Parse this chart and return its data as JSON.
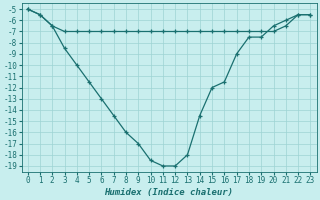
{
  "xlabel": "Humidex (Indice chaleur)",
  "background_color": "#c8eeee",
  "line_color": "#1a7070",
  "grid_color": "#9dd4d4",
  "xlim": [
    -0.5,
    23.5
  ],
  "ylim": [
    -19.5,
    -4.5
  ],
  "x_line1": [
    0,
    1,
    2,
    3,
    4,
    5,
    6,
    7,
    8,
    9,
    10,
    11,
    12,
    13,
    14,
    15,
    16,
    17,
    18,
    19,
    20,
    21,
    22,
    23
  ],
  "y_line1": [
    -5.0,
    -5.5,
    -6.5,
    -8.5,
    -10.0,
    -11.5,
    -13.0,
    -14.5,
    -16.0,
    -17.0,
    -18.5,
    -19.0,
    -19.0,
    -18.0,
    -14.5,
    -12.0,
    -11.5,
    -9.0,
    -7.5,
    -7.5,
    -6.5,
    -6.0,
    -5.5,
    -5.5
  ],
  "x_line2": [
    0,
    1,
    2,
    3,
    4,
    5,
    6,
    7,
    8,
    9,
    10,
    11,
    12,
    13,
    14,
    15,
    16,
    17,
    18,
    19,
    20,
    21,
    22,
    23
  ],
  "y_line2": [
    -5.0,
    -5.5,
    -6.5,
    -7.0,
    -7.0,
    -7.0,
    -7.0,
    -7.0,
    -7.0,
    -7.0,
    -7.0,
    -7.0,
    -7.0,
    -7.0,
    -7.0,
    -7.0,
    -7.0,
    -7.0,
    -7.0,
    -7.0,
    -7.0,
    -6.5,
    -5.5,
    -5.5
  ],
  "yticks": [
    -5,
    -6,
    -7,
    -8,
    -9,
    -10,
    -11,
    -12,
    -13,
    -14,
    -15,
    -16,
    -17,
    -18,
    -19
  ],
  "xticks": [
    0,
    1,
    2,
    3,
    4,
    5,
    6,
    7,
    8,
    9,
    10,
    11,
    12,
    13,
    14,
    15,
    16,
    17,
    18,
    19,
    20,
    21,
    22,
    23
  ],
  "tick_fontsize": 5.5,
  "xlabel_fontsize": 6.5,
  "marker": "+",
  "linewidth": 0.9,
  "markersize": 3.5
}
